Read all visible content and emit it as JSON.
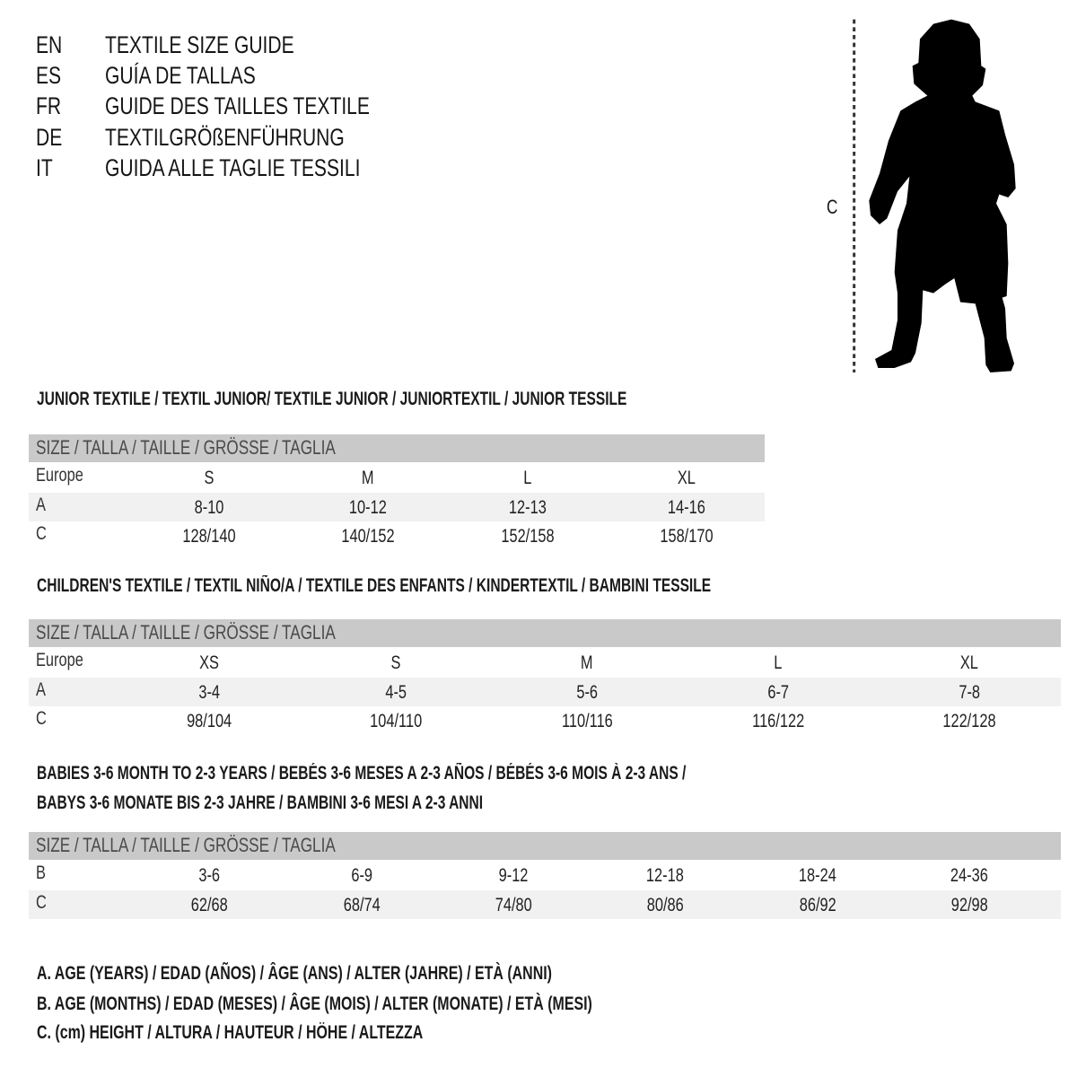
{
  "languages": [
    {
      "code": "EN",
      "title": "TEXTILE SIZE GUIDE"
    },
    {
      "code": "ES",
      "title": "GUÍA DE TALLAS"
    },
    {
      "code": "FR",
      "title": "GUIDE DES TAILLES TEXTILE"
    },
    {
      "code": "DE",
      "title": "TEXTILGRÖßENFÜHRUNG"
    },
    {
      "code": "IT",
      "title": "GUIDA ALLE TAGLIE TESSILI"
    }
  ],
  "figure": {
    "measure_label": "C",
    "icon": "child-silhouette-icon"
  },
  "size_header": "SIZE / TALLA / TAILLE / GRÖSSE / TAGLIA",
  "colors": {
    "header_band": "#c9c9c9",
    "alt_row": "#f1f1f1",
    "text": "#151515"
  },
  "tables": [
    {
      "title": "JUNIOR TEXTILE / TEXTIL JUNIOR/ TEXTILE JUNIOR / JUNIORTEXTIL / JUNIOR TESSILE",
      "rows": [
        {
          "label": "Europe",
          "values": [
            "S",
            "M",
            "L",
            "XL"
          ]
        },
        {
          "label": "A",
          "values": [
            "8-10",
            "10-12",
            "12-13",
            "14-16"
          ]
        },
        {
          "label": "C",
          "values": [
            "128/140",
            "140/152",
            "152/158",
            "158/170"
          ]
        }
      ]
    },
    {
      "title": "CHILDREN'S TEXTILE / TEXTIL NIÑO/A / TEXTILE DES ENFANTS / KINDERTEXTIL / BAMBINI TESSILE",
      "rows": [
        {
          "label": "Europe",
          "values": [
            "XS",
            "S",
            "M",
            "L",
            "XL"
          ]
        },
        {
          "label": "A",
          "values": [
            "3-4",
            "4-5",
            "5-6",
            "6-7",
            "7-8"
          ]
        },
        {
          "label": "C",
          "values": [
            "98/104",
            "104/110",
            "110/116",
            "116/122",
            "122/128"
          ]
        }
      ]
    },
    {
      "title": "BABIES 3-6 MONTH TO 2-3 YEARS / BEBÉS 3-6 MESES A 2-3 AÑOS / BÉBÉS 3-6 MOIS À 2-3 ANS /",
      "title_line2": "BABYS 3-6 MONATE BIS 2-3 JAHRE / BAMBINI 3-6 MESI A 2-3 ANNI",
      "rows": [
        {
          "label": "B",
          "values": [
            "3-6",
            "6-9",
            "9-12",
            "12-18",
            "18-24",
            "24-36"
          ]
        },
        {
          "label": "C",
          "values": [
            "62/68",
            "68/74",
            "74/80",
            "80/86",
            "86/92",
            "92/98"
          ]
        }
      ]
    }
  ],
  "legend": [
    "A. AGE (YEARS) / EDAD (AÑOS) / ÂGE (ANS) / ALTER (JAHRE) / ETÀ (ANNI)",
    "B. AGE (MONTHS) / EDAD (MESES) / ÂGE (MOIS) / ALTER (MONATE) / ETÀ (MESI)",
    "C. (cm) HEIGHT / ALTURA / HAUTEUR / HÖHE / ALTEZZA"
  ]
}
